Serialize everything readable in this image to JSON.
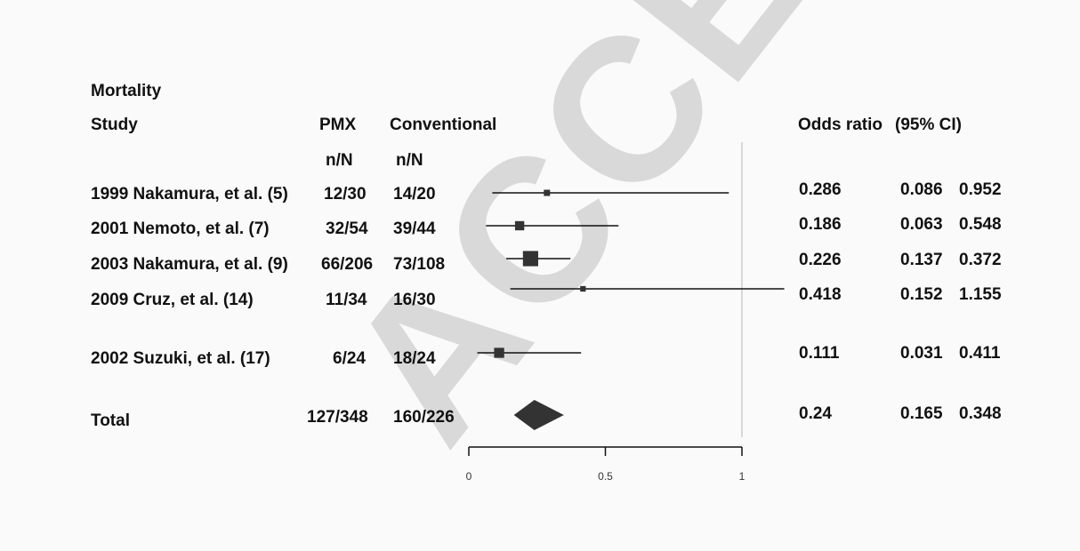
{
  "watermark": "ACCEPTED",
  "header": {
    "section_title": "Mortality",
    "col_study": "Study",
    "col_pmx": "PMX",
    "col_conventional": "Conventional",
    "col_pmx_sub": "n/N",
    "col_conventional_sub": "n/N",
    "col_or": "Odds ratio",
    "col_ci": "(95% CI)"
  },
  "rows": [
    {
      "study": "1999 Nakamura, et al. (5)",
      "pmx": "12/30",
      "conv": "14/20",
      "or": "0.286",
      "lo": "0.086",
      "hi": "0.952"
    },
    {
      "study": "2001 Nemoto, et al. (7)",
      "pmx": "32/54",
      "conv": "39/44",
      "or": "0.186",
      "lo": "0.063",
      "hi": "0.548"
    },
    {
      "study": "2003 Nakamura, et al. (9)",
      "pmx": "66/206",
      "conv": "73/108",
      "or": "0.226",
      "lo": "0.137",
      "hi": "0.372"
    },
    {
      "study": "2009 Cruz, et al. (14)",
      "pmx": "11/34",
      "conv": "16/30",
      "or": "0.418",
      "lo": "0.152",
      "hi": "1.155"
    },
    {
      "study": "2002 Suzuki, et al. (17)",
      "pmx": "6/24",
      "conv": "18/24",
      "or": "0.111",
      "lo": "0.031",
      "hi": "0.411"
    }
  ],
  "total": {
    "label": "Total",
    "pmx": "127/348",
    "conv": "160/226",
    "or": "0.24",
    "lo": "0.165",
    "hi": "0.348"
  },
  "chart_data": {
    "type": "forest",
    "x_ticks": [
      "0",
      "0.5",
      "1"
    ],
    "xlim": [
      0,
      1
    ],
    "reference_line": 1,
    "studies": [
      {
        "name": "1999 Nakamura, et al. (5)",
        "or": 0.286,
        "lo": 0.086,
        "hi": 0.952,
        "weight": 1
      },
      {
        "name": "2001 Nemoto, et al. (7)",
        "or": 0.186,
        "lo": 0.063,
        "hi": 0.548,
        "weight": 2.2
      },
      {
        "name": "2003 Nakamura, et al. (9)",
        "or": 0.226,
        "lo": 0.137,
        "hi": 0.372,
        "weight": 6
      },
      {
        "name": "2009 Cruz, et al. (14)",
        "or": 0.418,
        "lo": 0.152,
        "hi": 1.155,
        "weight": 0.8
      },
      {
        "name": "2002 Suzuki, et al. (17)",
        "or": 0.111,
        "lo": 0.031,
        "hi": 0.411,
        "weight": 2.6
      }
    ],
    "pooled": {
      "or": 0.24,
      "lo": 0.165,
      "hi": 0.348
    }
  }
}
